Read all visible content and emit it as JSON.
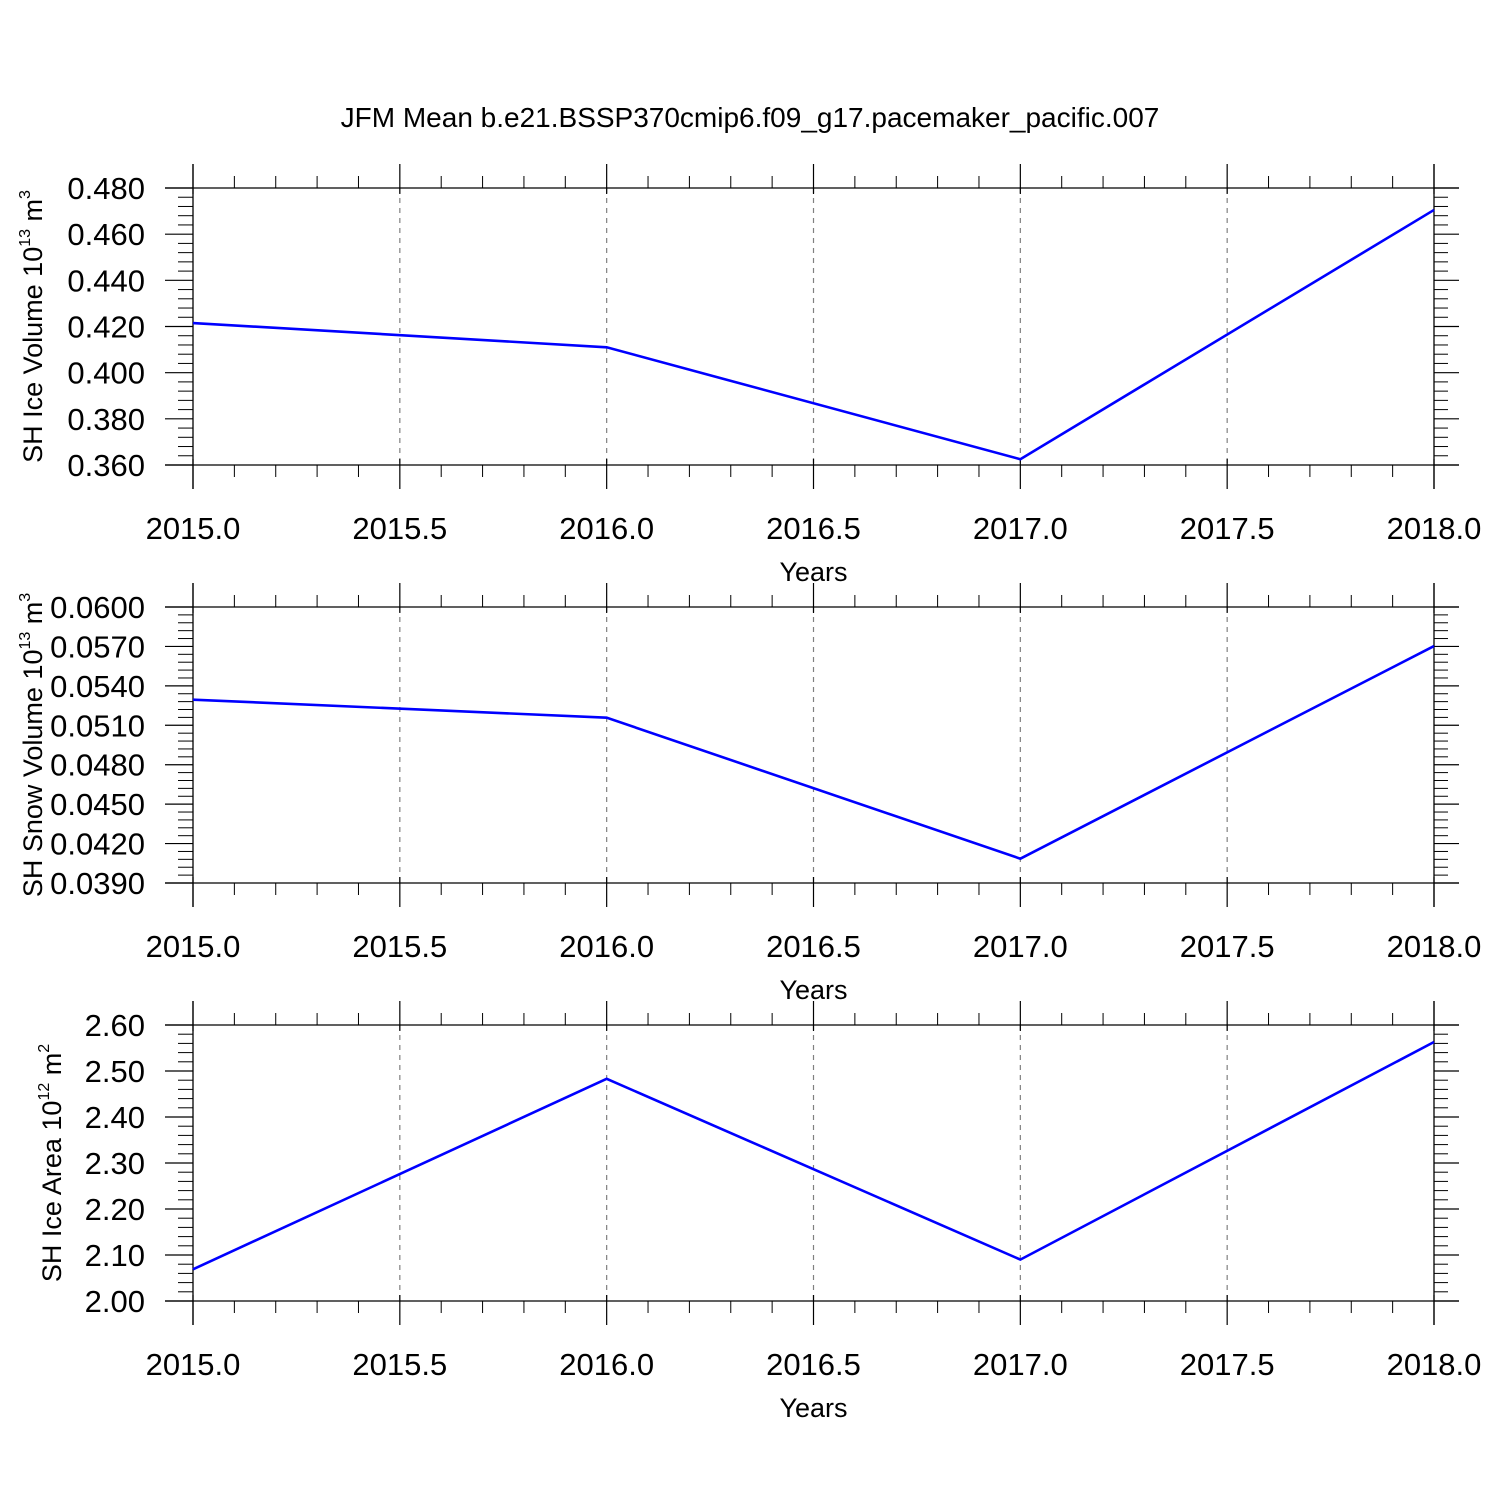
{
  "title": "JFM Mean b.e21.BSSP370cmip6.f09_g17.pacemaker_pacific.007",
  "colors": {
    "line": "#0000ff",
    "axis": "#000000",
    "grid": "#808080"
  },
  "chart_data": [
    {
      "type": "line",
      "xlabel": "Years",
      "ylabel": {
        "text": "SH Ice Volume 10",
        "sup1": "13",
        "unit": " m",
        "sup2": "3"
      },
      "xlim": [
        2015,
        2018
      ],
      "ylim": [
        0.36,
        0.48
      ],
      "xticks": [
        "2015.0",
        "2015.5",
        "2016.0",
        "2016.5",
        "2017.0",
        "2017.5",
        "2018.0"
      ],
      "yticks": [
        "0.360",
        "0.380",
        "0.400",
        "0.420",
        "0.440",
        "0.460",
        "0.480"
      ],
      "grid": "vertical dashed at x ticks",
      "x": [
        2015,
        2016,
        2017,
        2018
      ],
      "y": [
        0.4215,
        0.411,
        0.3625,
        0.4705
      ]
    },
    {
      "type": "line",
      "xlabel": "Years",
      "ylabel": {
        "text": "SH Snow Volume 10",
        "sup1": "13",
        "unit": " m",
        "sup2": "3"
      },
      "xlim": [
        2015,
        2018
      ],
      "ylim": [
        0.039,
        0.06
      ],
      "xticks": [
        "2015.0",
        "2015.5",
        "2016.0",
        "2016.5",
        "2017.0",
        "2017.5",
        "2018.0"
      ],
      "yticks": [
        "0.0390",
        "0.0420",
        "0.0450",
        "0.0480",
        "0.0510",
        "0.0540",
        "0.0570",
        "0.0600"
      ],
      "grid": "vertical dashed at x ticks",
      "x": [
        2015,
        2016,
        2017,
        2018
      ],
      "y": [
        0.05295,
        0.05158,
        0.04085,
        0.05703
      ]
    },
    {
      "type": "line",
      "xlabel": "Years",
      "ylabel": {
        "text": "SH Ice Area 10",
        "sup1": "12",
        "unit": " m",
        "sup2": "2"
      },
      "xlim": [
        2015,
        2018
      ],
      "ylim": [
        2.0,
        2.6
      ],
      "xticks": [
        "2015.0",
        "2015.5",
        "2016.0",
        "2016.5",
        "2017.0",
        "2017.5",
        "2018.0"
      ],
      "yticks": [
        "2.00",
        "2.10",
        "2.20",
        "2.30",
        "2.40",
        "2.50",
        "2.60"
      ],
      "grid": "vertical dashed at x ticks",
      "x": [
        2015,
        2016,
        2017,
        2018
      ],
      "y": [
        2.069,
        2.483,
        2.09,
        2.563
      ]
    }
  ]
}
